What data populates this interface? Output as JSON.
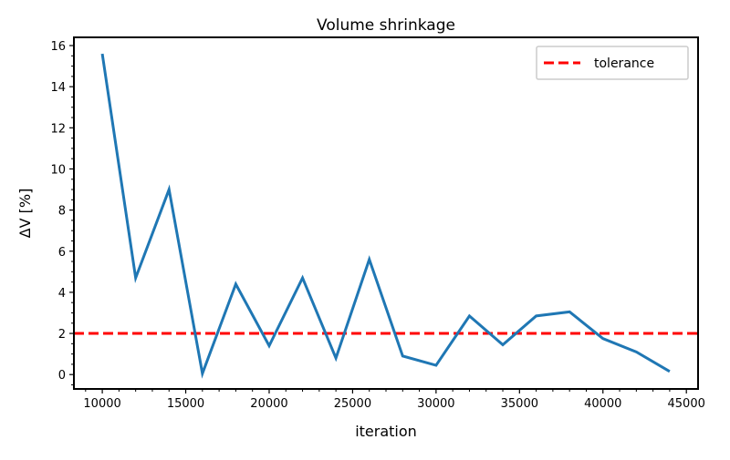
{
  "chart_data": {
    "type": "line",
    "title": "Volume shrinkage",
    "xlabel": "iteration",
    "ylabel": "ΔV [%]",
    "xlim": [
      8300,
      45700
    ],
    "ylim": [
      -0.7,
      16.4
    ],
    "xticks": [
      10000,
      15000,
      20000,
      25000,
      30000,
      35000,
      40000,
      45000
    ],
    "yticks": [
      0,
      2,
      4,
      6,
      8,
      10,
      12,
      14,
      16
    ],
    "grid": false,
    "legend_position": "top-right",
    "series": [
      {
        "color": "#1f77b4",
        "x": [
          10000,
          12000,
          14000,
          16000,
          18000,
          20000,
          22000,
          24000,
          26000,
          28000,
          30000,
          32000,
          34000,
          36000,
          38000,
          40000,
          42000,
          44000
        ],
        "y": [
          15.6,
          4.7,
          9.0,
          0.05,
          4.4,
          1.4,
          4.7,
          0.8,
          5.6,
          0.9,
          0.45,
          2.85,
          1.45,
          2.85,
          3.05,
          1.75,
          1.1,
          0.15
        ]
      }
    ],
    "reference_lines": [
      {
        "name": "tolerance",
        "orientation": "horizontal",
        "y": 2.0,
        "color": "#ff0000",
        "style": "dashed"
      }
    ]
  }
}
